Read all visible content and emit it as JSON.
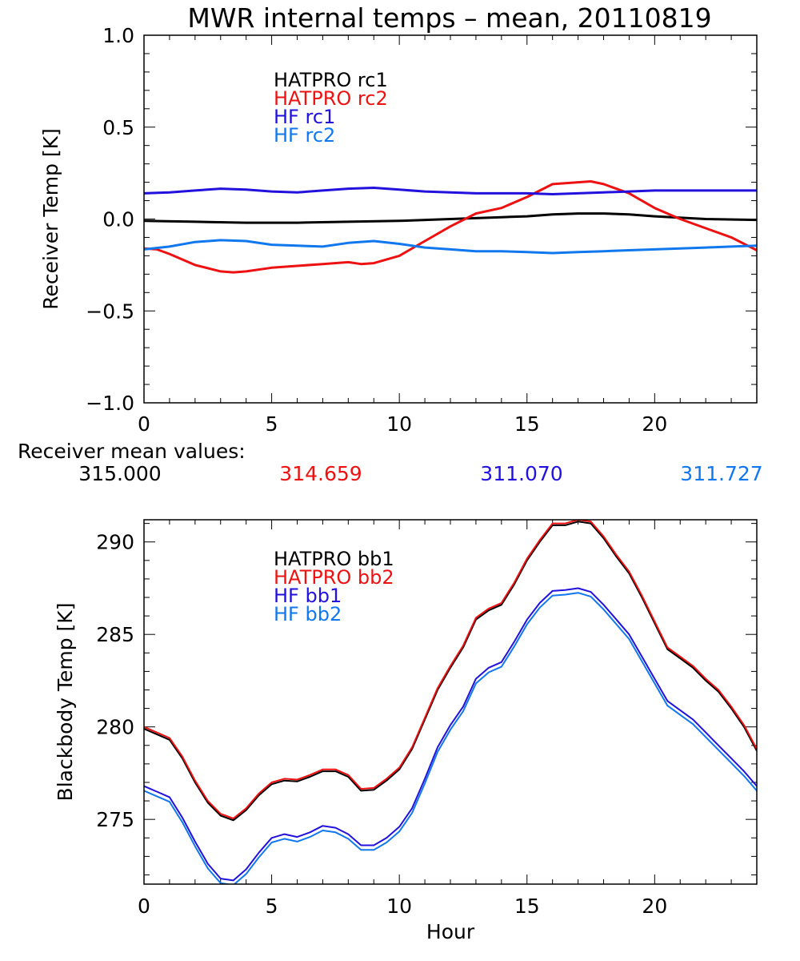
{
  "title": "MWR internal temps – mean, 20110819",
  "colors": {
    "black": "#000000",
    "red": "#ee1111",
    "blue": "#2211dd",
    "lightblue": "#1177ee"
  },
  "mean_values": {
    "label": "Receiver mean values:",
    "items": [
      {
        "value": "315.000",
        "color": "#000000"
      },
      {
        "value": "314.659",
        "color": "#ee1111"
      },
      {
        "value": "311.070",
        "color": "#2211dd"
      },
      {
        "value": "311.727",
        "color": "#1177ee"
      }
    ]
  },
  "chart_data": [
    {
      "type": "line",
      "title": "MWR internal temps – mean, 20110819",
      "xlabel": "",
      "ylabel": "Receiver Temp [K]",
      "xlim": [
        0,
        24
      ],
      "ylim": [
        -1.0,
        1.0
      ],
      "xticks": [
        0,
        5,
        10,
        15,
        20
      ],
      "xtick_labels": [
        "0",
        "5",
        "10",
        "15",
        "20"
      ],
      "yticks": [
        -1.0,
        -0.5,
        0.0,
        0.5,
        1.0
      ],
      "ytick_labels": [
        "−1.0",
        "−0.5",
        "0.0",
        "0.5",
        "1.0"
      ],
      "legend_position": "top-left",
      "series": [
        {
          "name": "HATPRO rc1",
          "color": "#000000",
          "x": [
            0,
            2,
            4,
            6,
            8,
            10,
            12,
            14,
            15,
            16,
            17,
            18,
            19,
            20,
            22,
            24
          ],
          "y": [
            -0.01,
            -0.015,
            -0.02,
            -0.02,
            -0.015,
            -0.01,
            0.0,
            0.01,
            0.015,
            0.025,
            0.03,
            0.03,
            0.025,
            0.015,
            0.0,
            -0.005
          ]
        },
        {
          "name": "HATPRO rc2",
          "color": "#ee1111",
          "x": [
            0,
            0.5,
            1,
            2,
            3,
            3.5,
            4,
            5,
            6,
            7,
            8,
            8.5,
            9,
            10,
            11,
            12,
            13,
            14,
            15,
            16,
            17,
            17.5,
            18,
            19,
            20,
            21,
            22,
            23,
            24
          ],
          "y": [
            -0.16,
            -0.165,
            -0.19,
            -0.25,
            -0.285,
            -0.29,
            -0.285,
            -0.265,
            -0.255,
            -0.245,
            -0.235,
            -0.245,
            -0.24,
            -0.2,
            -0.12,
            -0.04,
            0.03,
            0.06,
            0.12,
            0.19,
            0.2,
            0.205,
            0.19,
            0.14,
            0.06,
            0.0,
            -0.05,
            -0.1,
            -0.17
          ]
        },
        {
          "name": "HF rc1",
          "color": "#2211dd",
          "x": [
            0,
            1,
            2,
            3,
            4,
            5,
            6,
            7,
            8,
            9,
            10,
            11,
            12,
            13,
            14,
            15,
            16,
            17,
            18,
            19,
            20,
            21,
            22,
            23,
            24
          ],
          "y": [
            0.14,
            0.145,
            0.155,
            0.165,
            0.16,
            0.15,
            0.145,
            0.155,
            0.165,
            0.17,
            0.16,
            0.15,
            0.145,
            0.14,
            0.14,
            0.14,
            0.135,
            0.14,
            0.145,
            0.15,
            0.155,
            0.155,
            0.155,
            0.155,
            0.155
          ]
        },
        {
          "name": "HF rc2",
          "color": "#1177ee",
          "x": [
            0,
            1,
            2,
            3,
            4,
            5,
            6,
            7,
            8,
            9,
            10,
            11,
            12,
            13,
            14,
            15,
            16,
            17,
            18,
            19,
            20,
            21,
            22,
            23,
            24
          ],
          "y": [
            -0.165,
            -0.15,
            -0.125,
            -0.115,
            -0.12,
            -0.14,
            -0.145,
            -0.15,
            -0.13,
            -0.12,
            -0.135,
            -0.155,
            -0.165,
            -0.175,
            -0.175,
            -0.18,
            -0.185,
            -0.18,
            -0.175,
            -0.17,
            -0.165,
            -0.16,
            -0.155,
            -0.15,
            -0.145
          ]
        }
      ]
    },
    {
      "type": "line",
      "title": "",
      "xlabel": "Hour",
      "ylabel": "Blackbody Temp [K]",
      "xlim": [
        0,
        24
      ],
      "ylim": [
        271.5,
        291.2
      ],
      "xticks": [
        0,
        5,
        10,
        15,
        20
      ],
      "xtick_labels": [
        "0",
        "5",
        "10",
        "15",
        "20"
      ],
      "yticks": [
        275,
        280,
        285,
        290
      ],
      "ytick_labels": [
        "275",
        "280",
        "285",
        "290"
      ],
      "legend_position": "top-left",
      "series": [
        {
          "name": "HATPRO bb1",
          "color": "#000000",
          "x": [
            0,
            0.5,
            1,
            1.5,
            2,
            2.5,
            3,
            3.5,
            4,
            4.5,
            5,
            5.5,
            6,
            6.5,
            7,
            7.5,
            8,
            8.5,
            9,
            9.5,
            10,
            10.5,
            11,
            11.5,
            12,
            12.5,
            13,
            13.5,
            14,
            14.5,
            15,
            15.5,
            16,
            16.5,
            17,
            17.5,
            18,
            18.5,
            19,
            19.5,
            20,
            20.5,
            21,
            21.5,
            22,
            22.5,
            23,
            23.5,
            24
          ],
          "y": [
            279.9,
            279.6,
            279.3,
            278.3,
            277.0,
            275.9,
            275.2,
            274.95,
            275.5,
            276.3,
            276.9,
            277.1,
            277.05,
            277.3,
            277.6,
            277.6,
            277.3,
            276.55,
            276.6,
            277.1,
            277.7,
            278.8,
            280.4,
            282.0,
            283.2,
            284.3,
            285.8,
            286.3,
            286.6,
            287.7,
            289.0,
            290.0,
            290.9,
            290.9,
            291.1,
            291.0,
            290.2,
            289.2,
            288.3,
            287.0,
            285.6,
            284.2,
            283.7,
            283.2,
            282.5,
            281.9,
            281.0,
            280.0,
            278.7
          ]
        },
        {
          "name": "HATPRO bb2",
          "color": "#ee1111",
          "x": [
            0,
            0.5,
            1,
            1.5,
            2,
            2.5,
            3,
            3.5,
            4,
            4.5,
            5,
            5.5,
            6,
            6.5,
            7,
            7.5,
            8,
            8.5,
            9,
            9.5,
            10,
            10.5,
            11,
            11.5,
            12,
            12.5,
            13,
            13.5,
            14,
            14.5,
            15,
            15.5,
            16,
            16.5,
            17,
            17.5,
            18,
            18.5,
            19,
            19.5,
            20,
            20.5,
            21,
            21.5,
            22,
            22.5,
            23,
            23.5,
            24
          ],
          "y": [
            280.0,
            279.7,
            279.4,
            278.4,
            277.1,
            276.0,
            275.3,
            275.05,
            275.6,
            276.4,
            277.0,
            277.2,
            277.15,
            277.4,
            277.7,
            277.7,
            277.4,
            276.65,
            276.7,
            277.2,
            277.8,
            278.9,
            280.5,
            282.1,
            283.3,
            284.4,
            285.9,
            286.4,
            286.7,
            287.8,
            289.1,
            290.1,
            291.0,
            291.0,
            291.2,
            291.1,
            290.3,
            289.3,
            288.4,
            287.1,
            285.7,
            284.3,
            283.8,
            283.3,
            282.6,
            282.0,
            281.1,
            280.1,
            278.8
          ]
        },
        {
          "name": "HF bb1",
          "color": "#2211dd",
          "x": [
            0,
            0.5,
            1,
            1.5,
            2,
            2.5,
            3,
            3.5,
            4,
            4.5,
            5,
            5.5,
            6,
            6.5,
            7,
            7.5,
            8,
            8.5,
            9,
            9.5,
            10,
            10.5,
            11,
            11.5,
            12,
            12.5,
            13,
            13.5,
            14,
            14.5,
            15,
            15.5,
            16,
            16.5,
            17,
            17.5,
            18,
            18.5,
            19,
            19.5,
            20,
            20.5,
            21,
            21.5,
            22,
            22.5,
            23,
            23.5,
            24
          ],
          "y": [
            276.8,
            276.5,
            276.2,
            275.1,
            273.8,
            272.6,
            271.8,
            271.7,
            272.3,
            273.2,
            274.0,
            274.2,
            274.05,
            274.3,
            274.65,
            274.55,
            274.2,
            273.6,
            273.6,
            274.0,
            274.6,
            275.6,
            277.2,
            278.9,
            280.1,
            281.1,
            282.6,
            283.2,
            283.5,
            284.6,
            285.8,
            286.7,
            287.35,
            287.4,
            287.5,
            287.3,
            286.6,
            285.8,
            285.0,
            283.8,
            282.6,
            281.4,
            280.9,
            280.4,
            279.7,
            279.0,
            278.3,
            277.6,
            276.8
          ]
        },
        {
          "name": "HF bb2",
          "color": "#1177ee",
          "x": [
            0,
            0.5,
            1,
            1.5,
            2,
            2.5,
            3,
            3.5,
            4,
            4.5,
            5,
            5.5,
            6,
            6.5,
            7,
            7.5,
            8,
            8.5,
            9,
            9.5,
            10,
            10.5,
            11,
            11.5,
            12,
            12.5,
            13,
            13.5,
            14,
            14.5,
            15,
            15.5,
            16,
            16.5,
            17,
            17.5,
            18,
            18.5,
            19,
            19.5,
            20,
            20.5,
            21,
            21.5,
            22,
            22.5,
            23,
            23.5,
            24
          ],
          "y": [
            276.55,
            276.25,
            275.95,
            274.85,
            273.55,
            272.35,
            271.55,
            271.45,
            272.05,
            272.95,
            273.75,
            273.95,
            273.8,
            274.05,
            274.4,
            274.3,
            273.95,
            273.35,
            273.35,
            273.75,
            274.35,
            275.35,
            276.95,
            278.65,
            279.85,
            280.85,
            282.35,
            282.95,
            283.25,
            284.35,
            285.55,
            286.45,
            287.1,
            287.15,
            287.25,
            287.05,
            286.35,
            285.55,
            284.75,
            283.55,
            282.35,
            281.15,
            280.65,
            280.15,
            279.45,
            278.75,
            278.05,
            277.35,
            276.55
          ]
        }
      ]
    }
  ]
}
